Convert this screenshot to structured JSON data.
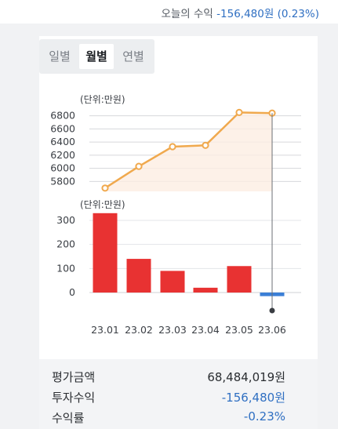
{
  "header": {
    "today_label": "오늘의 수익",
    "today_value": "-156,480원 (0.23%)"
  },
  "tabs": [
    {
      "label": "일별",
      "active": false
    },
    {
      "label": "월별",
      "active": true
    },
    {
      "label": "연별",
      "active": false
    }
  ],
  "chart_data": [
    {
      "type": "line",
      "unit_label": "(단위:만원)",
      "categories": [
        "23.01",
        "23.02",
        "23.03",
        "23.04",
        "23.05",
        "23.06"
      ],
      "values": [
        5700,
        6030,
        6330,
        6350,
        6850,
        6840
      ],
      "y_ticks": [
        5800,
        6000,
        6200,
        6400,
        6600,
        6800
      ],
      "ylim": [
        5650,
        6950
      ],
      "color": "#f0a94e",
      "area_fill": "#fdeee2"
    },
    {
      "type": "bar",
      "unit_label": "(단위:만원)",
      "categories": [
        "23.01",
        "23.02",
        "23.03",
        "23.04",
        "23.05",
        "23.06"
      ],
      "values": [
        330,
        140,
        90,
        20,
        110,
        -15
      ],
      "y_ticks": [
        0,
        100,
        200,
        300
      ],
      "ylim": [
        -40,
        350
      ],
      "positive_color": "#e83232",
      "negative_color": "#3b7fd6"
    }
  ],
  "summary": {
    "eval_label": "평가금액",
    "eval_value": "68,484,019원",
    "profit_label": "투자수익",
    "profit_value": "-156,480원",
    "rate_label": "수익률",
    "rate_value": "-0.23%"
  }
}
